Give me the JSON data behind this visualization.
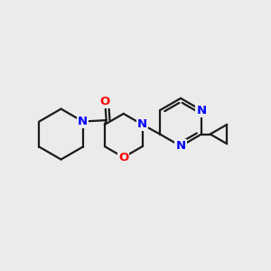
{
  "bg_color": "#ebebeb",
  "bond_color": "#1a1a1a",
  "N_color": "#0000ff",
  "O_color": "#ff0000",
  "line_width": 1.6,
  "font_size": 9.5,
  "figsize": [
    3.0,
    3.0
  ],
  "dpi": 100,
  "xlim": [
    0,
    10
  ],
  "ylim": [
    0,
    10
  ]
}
